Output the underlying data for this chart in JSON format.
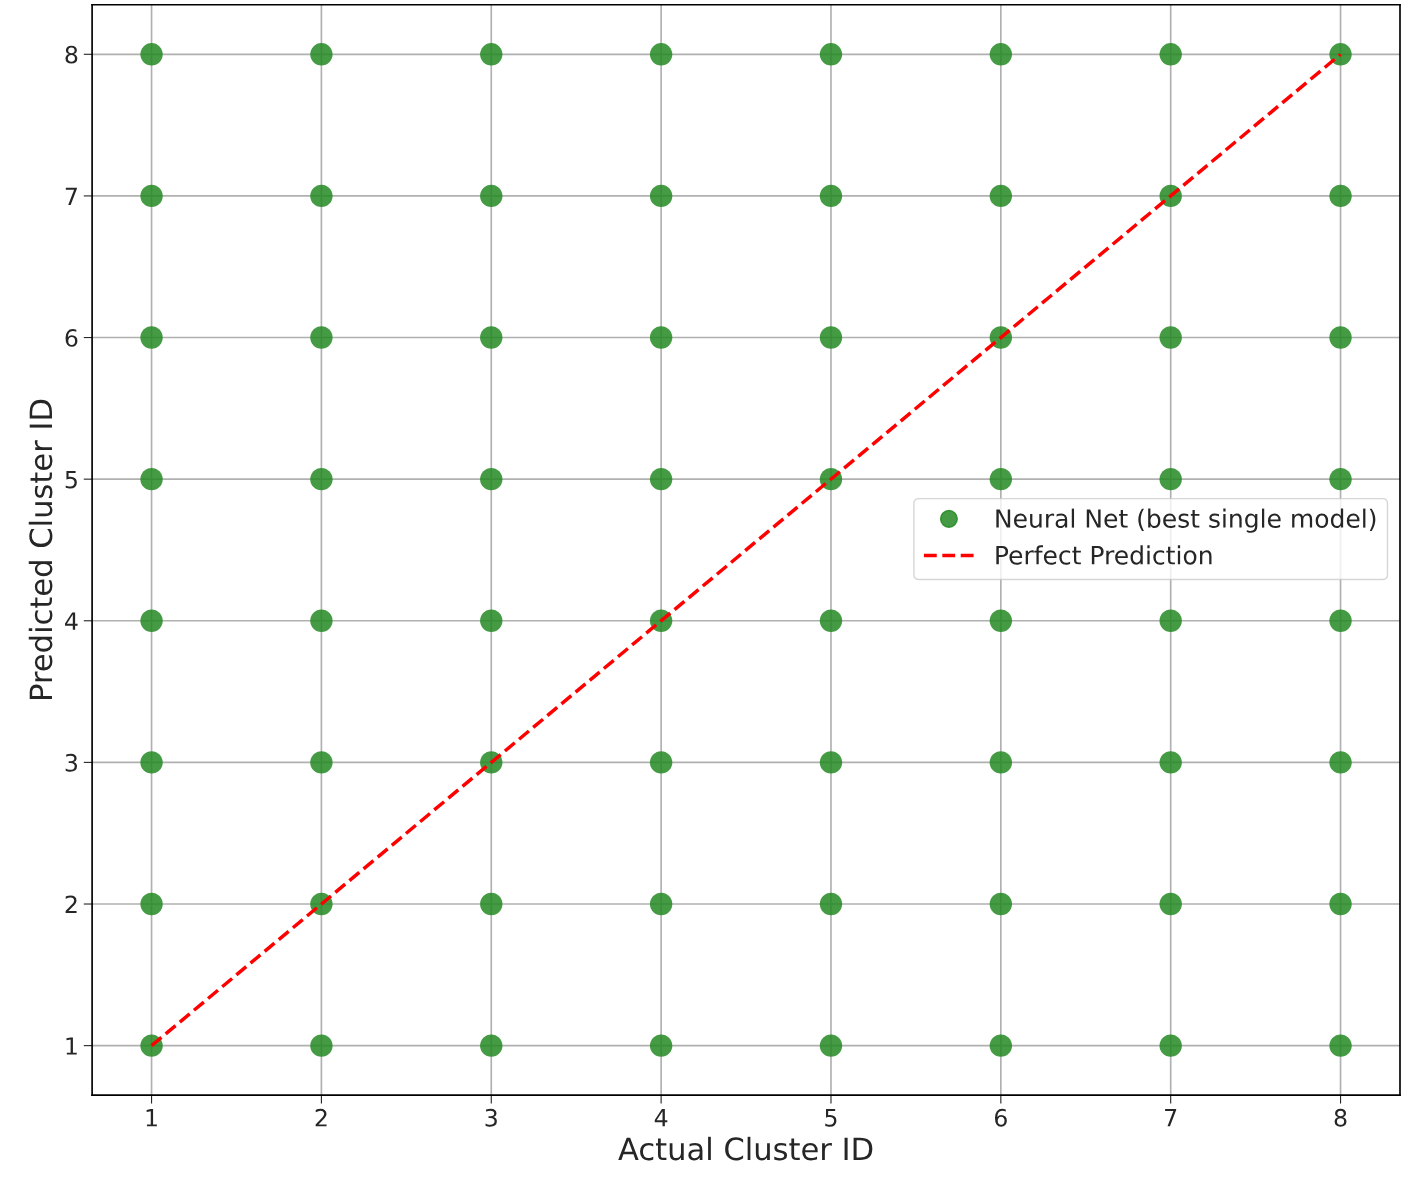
{
  "chart_data": {
    "type": "scatter",
    "xlabel": "Actual Cluster ID",
    "ylabel": "Predicted Cluster ID",
    "xlim": [
      0.65,
      8.35
    ],
    "ylim": [
      0.65,
      8.35
    ],
    "xticks": [
      1,
      2,
      3,
      4,
      5,
      6,
      7,
      8
    ],
    "yticks": [
      1,
      2,
      3,
      4,
      5,
      6,
      7,
      8
    ],
    "grid": true,
    "legend": "center right",
    "marker": "circle",
    "series": [
      {
        "name": "Neural Net (best single model)",
        "color": "#238a23",
        "x": [
          1,
          1,
          1,
          1,
          1,
          1,
          1,
          1,
          2,
          2,
          2,
          2,
          2,
          2,
          2,
          2,
          3,
          3,
          3,
          3,
          3,
          3,
          3,
          3,
          4,
          4,
          4,
          4,
          4,
          4,
          4,
          4,
          5,
          5,
          5,
          5,
          5,
          5,
          5,
          5,
          6,
          6,
          6,
          6,
          6,
          6,
          6,
          6,
          7,
          7,
          7,
          7,
          7,
          7,
          7,
          7,
          8,
          8,
          8,
          8,
          8,
          8,
          8,
          8
        ],
        "values": [
          1,
          2,
          3,
          4,
          5,
          6,
          7,
          8,
          1,
          2,
          3,
          4,
          5,
          6,
          7,
          8,
          1,
          2,
          3,
          4,
          5,
          6,
          7,
          8,
          1,
          2,
          3,
          4,
          5,
          6,
          7,
          8,
          1,
          2,
          3,
          4,
          5,
          6,
          7,
          8,
          1,
          2,
          3,
          4,
          5,
          6,
          7,
          8,
          1,
          2,
          3,
          4,
          5,
          6,
          7,
          8,
          1,
          2,
          3,
          4,
          5,
          6,
          7,
          8
        ]
      },
      {
        "name": "Perfect Prediction",
        "type": "line",
        "color": "#ff0000",
        "line_style": "dashed",
        "marker": "none",
        "x": [
          1,
          8
        ],
        "values": [
          1,
          8
        ]
      }
    ]
  }
}
